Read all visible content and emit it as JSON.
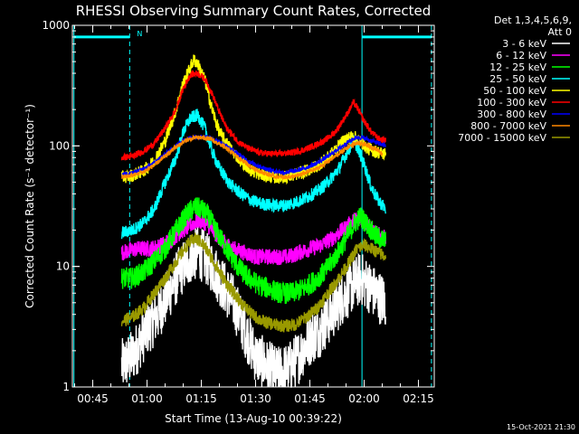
{
  "chart_data": {
    "type": "line",
    "title": "RHESSI Observing Summary Count Rates, Corrected",
    "xlabel": "Start Time (13-Aug-10 00:39:22)",
    "ylabel": "Corrected Count Rate (s⁻¹ detector⁻¹)",
    "footer_date": "15-Oct-2021 21:30",
    "yscale": "log",
    "ylim": [
      1,
      1000
    ],
    "xlim_minutes": [
      39.37,
      139.37
    ],
    "x_ticks": [
      {
        "label": "00:45",
        "minute": 45
      },
      {
        "label": "01:00",
        "minute": 60
      },
      {
        "label": "01:15",
        "minute": 75
      },
      {
        "label": "01:30",
        "minute": 90
      },
      {
        "label": "01:45",
        "minute": 105
      },
      {
        "label": "02:00",
        "minute": 120
      },
      {
        "label": "02:15",
        "minute": 135
      }
    ],
    "y_ticks": [
      {
        "label": "1",
        "value": 1
      },
      {
        "label": "10",
        "value": 10
      },
      {
        "label": "100",
        "value": 100
      },
      {
        "label": "1000",
        "value": 1000
      }
    ],
    "legend": {
      "header1": "Det 1,3,4,5,6,9,",
      "header2": "Att 0",
      "entries": [
        {
          "label": "3 - 6 keV",
          "color": "#ffffff"
        },
        {
          "label": "6 - 12 keV",
          "color": "#ff00ff"
        },
        {
          "label": "12 - 25 keV",
          "color": "#00ff00"
        },
        {
          "label": "25 - 50 keV",
          "color": "#00ffff"
        },
        {
          "label": "50 - 100 keV",
          "color": "#ffff00"
        },
        {
          "label": "100 - 300 keV",
          "color": "#ff0000"
        },
        {
          "label": "300 - 800 keV",
          "color": "#0000ff"
        },
        {
          "label": "800 - 7000 keV",
          "color": "#ff8800"
        },
        {
          "label": "7000 - 15000 keV",
          "color": "#999900"
        }
      ]
    },
    "night_marker": {
      "label": "N",
      "color": "#00ffff",
      "start_minute": 39.8,
      "end_minute": 55.2,
      "level": 800
    },
    "night_marker_right": {
      "color": "#00ffff",
      "start_minute": 119.4,
      "end_minute": 138.6,
      "level": 800
    },
    "vlines": [
      {
        "minute": 39.8,
        "style": "solid",
        "color": "#00ffff"
      },
      {
        "minute": 55.2,
        "style": "dashed",
        "color": "#00ffff"
      },
      {
        "minute": 119.4,
        "style": "solid",
        "color": "#00ffff"
      },
      {
        "minute": 138.6,
        "style": "dashed",
        "color": "#00ffff"
      }
    ],
    "series": [
      {
        "color": "#ffffff",
        "noise": 0.5,
        "points": [
          [
            53,
            1.5
          ],
          [
            56,
            1.8
          ],
          [
            60,
            3
          ],
          [
            63,
            4
          ],
          [
            66,
            6
          ],
          [
            69,
            9
          ],
          [
            72,
            12
          ],
          [
            74,
            13
          ],
          [
            76,
            12
          ],
          [
            78,
            10
          ],
          [
            81,
            7
          ],
          [
            84,
            5
          ],
          [
            87,
            3
          ],
          [
            90,
            1.8
          ],
          [
            93,
            1.5
          ],
          [
            96,
            1.3
          ],
          [
            99,
            1.4
          ],
          [
            102,
            1.8
          ],
          [
            105,
            2.5
          ],
          [
            108,
            3
          ],
          [
            111,
            4
          ],
          [
            114,
            5.5
          ],
          [
            117,
            7
          ],
          [
            119,
            8
          ],
          [
            121,
            7
          ],
          [
            123,
            6
          ],
          [
            126,
            5
          ]
        ]
      },
      {
        "color": "#ff00ff",
        "noise": 0.15,
        "points": [
          [
            53,
            13
          ],
          [
            57,
            14
          ],
          [
            61,
            14
          ],
          [
            64,
            15
          ],
          [
            67,
            17
          ],
          [
            70,
            20
          ],
          [
            73,
            23
          ],
          [
            74,
            24
          ],
          [
            76,
            23
          ],
          [
            78,
            20
          ],
          [
            81,
            16
          ],
          [
            84,
            14
          ],
          [
            87,
            13
          ],
          [
            90,
            12
          ],
          [
            93,
            12
          ],
          [
            96,
            12
          ],
          [
            99,
            12
          ],
          [
            102,
            13
          ],
          [
            105,
            14
          ],
          [
            108,
            15
          ],
          [
            111,
            17
          ],
          [
            114,
            20
          ],
          [
            117,
            24
          ],
          [
            119,
            25
          ],
          [
            121,
            22
          ],
          [
            123,
            19
          ],
          [
            126,
            17
          ]
        ]
      },
      {
        "color": "#00ff00",
        "noise": 0.2,
        "points": [
          [
            53,
            8
          ],
          [
            56,
            8
          ],
          [
            59,
            9
          ],
          [
            62,
            11
          ],
          [
            65,
            14
          ],
          [
            68,
            20
          ],
          [
            71,
            27
          ],
          [
            73,
            31
          ],
          [
            75,
            30
          ],
          [
            77,
            26
          ],
          [
            79,
            20
          ],
          [
            82,
            14
          ],
          [
            85,
            10
          ],
          [
            88,
            8
          ],
          [
            91,
            7
          ],
          [
            94,
            6.5
          ],
          [
            97,
            6
          ],
          [
            100,
            6
          ],
          [
            103,
            6.5
          ],
          [
            106,
            7.5
          ],
          [
            109,
            9
          ],
          [
            112,
            12
          ],
          [
            115,
            17
          ],
          [
            117,
            22
          ],
          [
            119,
            26
          ],
          [
            121,
            22
          ],
          [
            123,
            18
          ],
          [
            126,
            16
          ]
        ]
      },
      {
        "color": "#00ffff",
        "noise": 0.12,
        "points": [
          [
            53,
            19
          ],
          [
            56,
            20
          ],
          [
            59,
            23
          ],
          [
            62,
            30
          ],
          [
            65,
            50
          ],
          [
            68,
            80
          ],
          [
            70,
            130
          ],
          [
            72,
            170
          ],
          [
            74,
            180
          ],
          [
            76,
            140
          ],
          [
            78,
            90
          ],
          [
            80,
            65
          ],
          [
            83,
            48
          ],
          [
            86,
            40
          ],
          [
            89,
            35
          ],
          [
            92,
            33
          ],
          [
            95,
            32
          ],
          [
            98,
            32
          ],
          [
            101,
            34
          ],
          [
            104,
            37
          ],
          [
            107,
            42
          ],
          [
            110,
            50
          ],
          [
            113,
            65
          ],
          [
            115,
            85
          ],
          [
            117,
            110
          ],
          [
            118,
            100
          ],
          [
            120,
            70
          ],
          [
            122,
            45
          ],
          [
            124,
            35
          ],
          [
            126,
            30
          ]
        ]
      },
      {
        "color": "#ffff00",
        "noise": 0.12,
        "points": [
          [
            53,
            55
          ],
          [
            56,
            57
          ],
          [
            59,
            62
          ],
          [
            62,
            75
          ],
          [
            65,
            110
          ],
          [
            68,
            200
          ],
          [
            70,
            330
          ],
          [
            72,
            450
          ],
          [
            73,
            520
          ],
          [
            74,
            480
          ],
          [
            76,
            350
          ],
          [
            78,
            200
          ],
          [
            80,
            130
          ],
          [
            83,
            95
          ],
          [
            86,
            75
          ],
          [
            89,
            62
          ],
          [
            92,
            57
          ],
          [
            95,
            55
          ],
          [
            98,
            55
          ],
          [
            101,
            58
          ],
          [
            104,
            62
          ],
          [
            107,
            68
          ],
          [
            110,
            80
          ],
          [
            113,
            100
          ],
          [
            115,
            115
          ],
          [
            117,
            120
          ],
          [
            119,
            110
          ],
          [
            121,
            95
          ],
          [
            123,
            90
          ],
          [
            126,
            85
          ]
        ]
      },
      {
        "color": "#ff0000",
        "noise": 0.06,
        "points": [
          [
            53,
            80
          ],
          [
            56,
            82
          ],
          [
            59,
            90
          ],
          [
            62,
            105
          ],
          [
            65,
            140
          ],
          [
            68,
            200
          ],
          [
            70,
            300
          ],
          [
            72,
            390
          ],
          [
            74,
            400
          ],
          [
            76,
            360
          ],
          [
            78,
            270
          ],
          [
            80,
            190
          ],
          [
            82,
            140
          ],
          [
            85,
            110
          ],
          [
            88,
            95
          ],
          [
            91,
            88
          ],
          [
            94,
            86
          ],
          [
            97,
            86
          ],
          [
            100,
            88
          ],
          [
            103,
            92
          ],
          [
            106,
            100
          ],
          [
            109,
            110
          ],
          [
            112,
            130
          ],
          [
            114,
            160
          ],
          [
            116,
            200
          ],
          [
            117,
            230
          ],
          [
            118,
            210
          ],
          [
            120,
            160
          ],
          [
            122,
            130
          ],
          [
            124,
            115
          ],
          [
            126,
            110
          ]
        ]
      },
      {
        "color": "#0000ff",
        "noise": 0.04,
        "points": [
          [
            53,
            58
          ],
          [
            56,
            60
          ],
          [
            59,
            64
          ],
          [
            62,
            72
          ],
          [
            65,
            85
          ],
          [
            68,
            100
          ],
          [
            71,
            115
          ],
          [
            74,
            120
          ],
          [
            77,
            118
          ],
          [
            80,
            108
          ],
          [
            83,
            95
          ],
          [
            86,
            82
          ],
          [
            89,
            72
          ],
          [
            92,
            66
          ],
          [
            95,
            62
          ],
          [
            98,
            60
          ],
          [
            101,
            62
          ],
          [
            104,
            66
          ],
          [
            107,
            72
          ],
          [
            110,
            82
          ],
          [
            113,
            95
          ],
          [
            116,
            110
          ],
          [
            118,
            118
          ],
          [
            120,
            116
          ],
          [
            122,
            110
          ],
          [
            124,
            105
          ],
          [
            126,
            100
          ]
        ]
      },
      {
        "color": "#ff8800",
        "noise": 0.04,
        "points": [
          [
            53,
            55
          ],
          [
            56,
            57
          ],
          [
            59,
            61
          ],
          [
            62,
            69
          ],
          [
            65,
            82
          ],
          [
            68,
            98
          ],
          [
            71,
            112
          ],
          [
            74,
            118
          ],
          [
            77,
            115
          ],
          [
            80,
            104
          ],
          [
            83,
            90
          ],
          [
            86,
            77
          ],
          [
            89,
            66
          ],
          [
            92,
            60
          ],
          [
            95,
            56
          ],
          [
            98,
            55
          ],
          [
            101,
            56
          ],
          [
            104,
            60
          ],
          [
            107,
            65
          ],
          [
            110,
            74
          ],
          [
            113,
            86
          ],
          [
            116,
            100
          ],
          [
            118,
            105
          ],
          [
            120,
            103
          ],
          [
            122,
            98
          ],
          [
            124,
            92
          ],
          [
            125,
            85
          ]
        ]
      },
      {
        "color": "#999900",
        "noise": 0.12,
        "points": [
          [
            53,
            3.5
          ],
          [
            56,
            3.8
          ],
          [
            59,
            4.5
          ],
          [
            62,
            6
          ],
          [
            65,
            8
          ],
          [
            68,
            11
          ],
          [
            71,
            15
          ],
          [
            73,
            17
          ],
          [
            75,
            16
          ],
          [
            77,
            13
          ],
          [
            80,
            9
          ],
          [
            83,
            6.5
          ],
          [
            86,
            5
          ],
          [
            89,
            4
          ],
          [
            92,
            3.5
          ],
          [
            95,
            3.3
          ],
          [
            98,
            3.2
          ],
          [
            101,
            3.3
          ],
          [
            104,
            3.8
          ],
          [
            107,
            4.5
          ],
          [
            110,
            6
          ],
          [
            113,
            8
          ],
          [
            116,
            11
          ],
          [
            118,
            14
          ],
          [
            120,
            15
          ],
          [
            122,
            14
          ],
          [
            124,
            13
          ],
          [
            126,
            12
          ]
        ]
      }
    ]
  }
}
